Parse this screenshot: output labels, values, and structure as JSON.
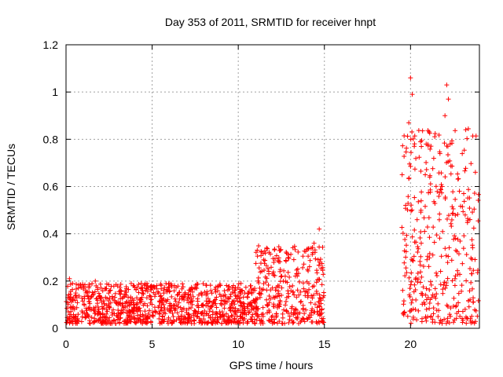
{
  "chart_data": {
    "type": "scatter",
    "title": "Day 353 of 2011, SRMTID for receiver hnpt",
    "xlabel": "GPS time / hours",
    "ylabel": "SRMTID / TECUs",
    "xlim": [
      0,
      24
    ],
    "ylim": [
      0,
      1.2
    ],
    "x_ticks": [
      "0",
      "5",
      "10",
      "15",
      "20"
    ],
    "y_ticks": [
      "0",
      "0.2",
      "0.4",
      "0.6",
      "0.8",
      "1",
      "1.2"
    ],
    "grid": true,
    "marker": "plus",
    "color": "#ff0000",
    "segments": [
      {
        "x_start": 0.0,
        "x_end": 11.0,
        "y_min": 0.02,
        "y_max": 0.19
      },
      {
        "x_start": 11.0,
        "x_end": 15.0,
        "y_min": 0.02,
        "y_max": 0.35
      },
      {
        "x_start": 19.5,
        "x_end": 24.0,
        "y_min": 0.02,
        "y_max": 0.85
      }
    ],
    "peaks": [
      {
        "x": 0.2,
        "y": 0.21
      },
      {
        "x": 1.7,
        "y": 0.2
      },
      {
        "x": 4.7,
        "y": 0.19
      },
      {
        "x": 12.9,
        "y": 0.3
      },
      {
        "x": 14.4,
        "y": 0.36
      },
      {
        "x": 14.7,
        "y": 0.42
      },
      {
        "x": 19.9,
        "y": 0.87
      },
      {
        "x": 20.0,
        "y": 1.06
      },
      {
        "x": 20.1,
        "y": 0.99
      },
      {
        "x": 22.1,
        "y": 1.03
      },
      {
        "x": 22.2,
        "y": 0.97
      },
      {
        "x": 22.0,
        "y": 0.9
      },
      {
        "x": 22.3,
        "y": 0.78
      }
    ]
  }
}
